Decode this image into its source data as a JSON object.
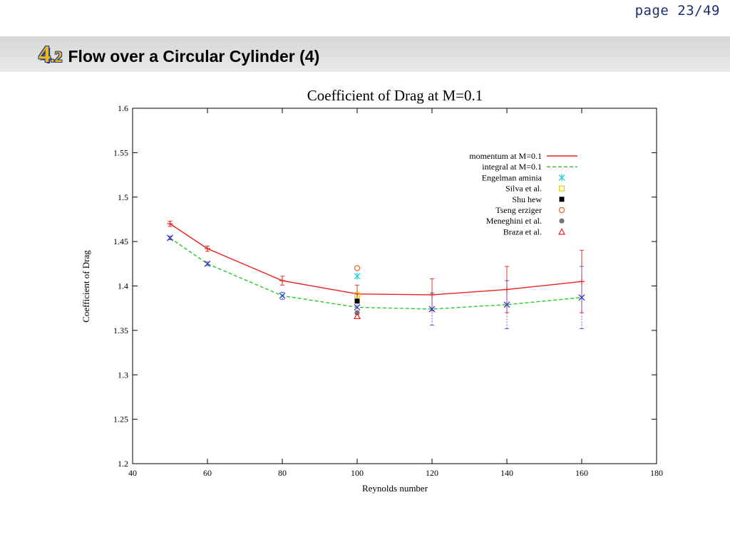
{
  "page": {
    "number": "page 23/49"
  },
  "slide": {
    "section_major": "4",
    "section_minor": ".2",
    "title": "Flow over a Circular Cylinder (4)"
  },
  "chart_data": {
    "type": "line",
    "title": "Coefficient of Drag at M=0.1",
    "xlabel": "Reynolds number",
    "ylabel": "Coefficient of Drag",
    "xlim": [
      40,
      180
    ],
    "ylim": [
      1.2,
      1.6
    ],
    "xticks": [
      40,
      60,
      80,
      100,
      120,
      140,
      160,
      180
    ],
    "yticks": [
      1.2,
      1.25,
      1.3,
      1.35,
      1.4,
      1.45,
      1.5,
      1.55,
      1.6
    ],
    "grid": false,
    "legend_position": "top-right",
    "series": [
      {
        "name": "momentum at M=0.1",
        "style": "solid",
        "color": "#e8211d",
        "x": [
          50,
          60,
          80,
          100,
          120,
          140,
          160
        ],
        "y": [
          1.47,
          1.442,
          1.406,
          1.391,
          1.39,
          1.396,
          1.405
        ],
        "err": [
          0.003,
          0.003,
          0.005,
          0.01,
          0.018,
          0.026,
          0.035
        ]
      },
      {
        "name": "integral at M=0.1",
        "style": "dashed",
        "color": "#22cc22",
        "x": [
          50,
          60,
          80,
          100,
          120,
          140,
          160
        ],
        "y": [
          1.454,
          1.425,
          1.389,
          1.376,
          1.374,
          1.379,
          1.387
        ],
        "err": [
          0.002,
          0.002,
          0.004,
          0.008,
          0.018,
          0.027,
          0.035
        ]
      }
    ],
    "references": [
      {
        "name": "Engelman aminia",
        "marker": "star",
        "color": "#22d3d3",
        "x": 100,
        "y": 1.411
      },
      {
        "name": "Silva et al.",
        "marker": "square-open",
        "color": "#e0d000",
        "x": 100,
        "y": 1.39
      },
      {
        "name": "Shu hew",
        "marker": "square-filled",
        "color": "#000000",
        "x": 100,
        "y": 1.383
      },
      {
        "name": "Tseng erziger",
        "marker": "circle-open",
        "color": "#f06020",
        "x": 100,
        "y": 1.42
      },
      {
        "name": "Meneghini et al.",
        "marker": "circle-filled",
        "color": "#777777",
        "x": 100,
        "y": 1.37
      },
      {
        "name": "Braza et al.",
        "marker": "triangle-open",
        "color": "#e8211d",
        "x": 100,
        "y": 1.366
      }
    ]
  }
}
